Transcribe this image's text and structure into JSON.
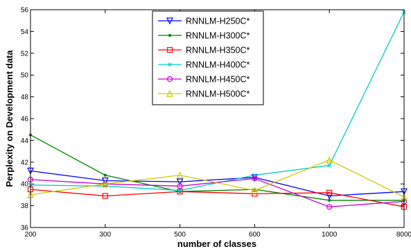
{
  "chart_data": {
    "type": "line",
    "xlabel": "number of classes",
    "ylabel": "Perplexity on Development data",
    "categories": [
      "200",
      "300",
      "500",
      "600",
      "1000",
      "8000"
    ],
    "ylim": [
      36,
      56
    ],
    "yticks": [
      "36",
      "38",
      "40",
      "42",
      "44",
      "46",
      "48",
      "50",
      "52",
      "54",
      "56"
    ],
    "grid": false,
    "legend_position": "top-center",
    "series": [
      {
        "name": "RNNLM-H250C*",
        "color": "#0000ff",
        "marker": "triangle-down",
        "values": [
          41.2,
          40.3,
          40.2,
          40.6,
          38.9,
          39.3
        ]
      },
      {
        "name": "RNNLM-H300C*",
        "color": "#008000",
        "marker": "dot",
        "values": [
          44.5,
          40.8,
          39.3,
          39.5,
          38.5,
          38.5
        ]
      },
      {
        "name": "RNNLM-H350C*",
        "color": "#ff0000",
        "marker": "square",
        "values": [
          39.5,
          38.9,
          39.3,
          39.1,
          39.2,
          37.9
        ]
      },
      {
        "name": "RNNLM-H400C*",
        "color": "#00cccc",
        "marker": "x",
        "values": [
          39.9,
          39.8,
          39.4,
          40.8,
          41.7,
          55.8
        ]
      },
      {
        "name": "RNNLM-H450C*",
        "color": "#cc00cc",
        "marker": "circle",
        "values": [
          40.4,
          40.0,
          39.8,
          40.5,
          37.9,
          38.4
        ]
      },
      {
        "name": "RNNLM-H500C*",
        "color": "#cccc00",
        "marker": "triangle-up",
        "values": [
          39.0,
          40.0,
          40.8,
          39.4,
          42.2,
          38.8
        ]
      }
    ]
  }
}
